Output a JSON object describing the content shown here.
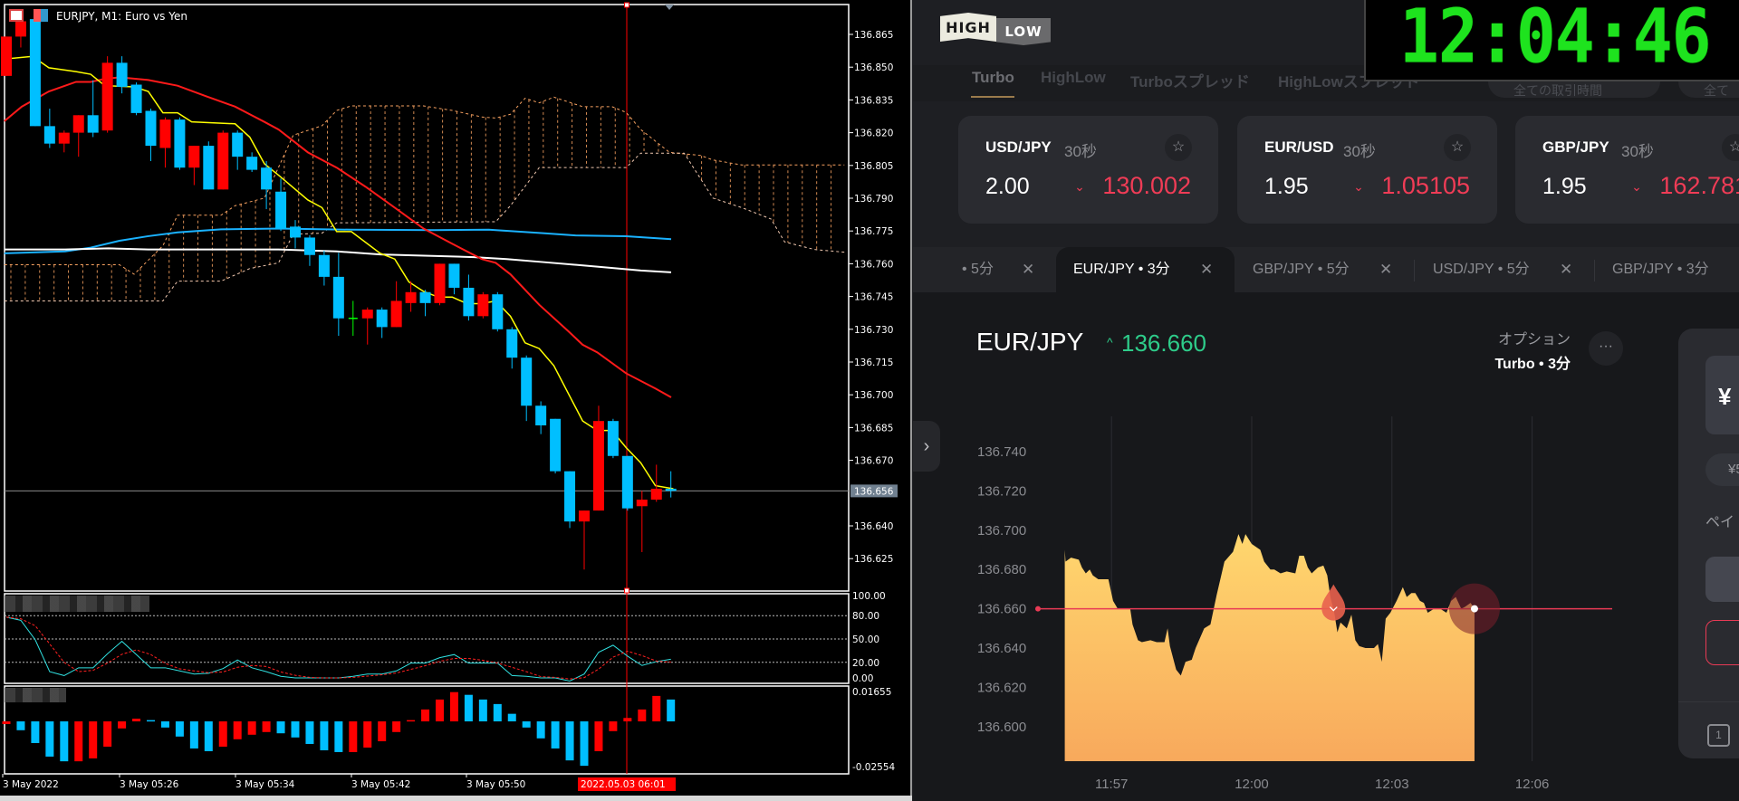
{
  "mt4": {
    "title": "EURJPY, M1:  Euro vs Yen",
    "price_axis": [
      "136.865",
      "136.850",
      "136.835",
      "136.820",
      "136.805",
      "136.790",
      "136.775",
      "136.760",
      "136.745",
      "136.730",
      "136.715",
      "136.700",
      "136.685",
      "136.670",
      "136.640",
      "136.625"
    ],
    "current_price": "136.656",
    "stoch_axis": [
      "100.00",
      "80.00",
      "50.00",
      "20.00",
      "0.00"
    ],
    "hist_axis": [
      "0.01655",
      "-0.02554"
    ],
    "time_axis": [
      "3 May 2022",
      "3 May 05:26",
      "3 May 05:34",
      "3 May 05:42",
      "3 May 05:50"
    ],
    "crosshair_time": "2022.05.03 06:01",
    "colors": {
      "bull": "#ff0000",
      "bear": "#00bfff",
      "doji": "#00ff00",
      "ma_fast": "#ffff00",
      "ma_mid": "#ff1a1a",
      "ma_slow1": "#1ab2ff",
      "ma_slow2": "#ffffff",
      "cloud": "#f5a060",
      "crosshair": "#ff0000"
    },
    "chart_data": {
      "type": "candlestick",
      "timeframe": "M1",
      "first_bar": "05:18",
      "candles_ohlc": [
        [
          136.846,
          136.864,
          136.846,
          136.864
        ],
        [
          136.864,
          136.874,
          136.859,
          136.871
        ],
        [
          136.872,
          136.874,
          136.823,
          136.823
        ],
        [
          136.823,
          136.831,
          136.813,
          136.815
        ],
        [
          136.815,
          136.821,
          136.811,
          136.82
        ],
        [
          136.82,
          136.828,
          136.809,
          136.828
        ],
        [
          136.828,
          136.844,
          136.818,
          136.82
        ],
        [
          136.821,
          136.855,
          136.82,
          136.852
        ],
        [
          136.852,
          136.855,
          136.838,
          136.841
        ],
        [
          136.842,
          136.843,
          136.828,
          136.829
        ],
        [
          136.83,
          136.831,
          136.807,
          136.814
        ],
        [
          136.813,
          136.827,
          136.804,
          136.826
        ],
        [
          136.826,
          136.827,
          136.803,
          136.804
        ],
        [
          136.804,
          136.814,
          136.796,
          136.814
        ],
        [
          136.814,
          136.816,
          136.794,
          136.794
        ],
        [
          136.794,
          136.821,
          136.794,
          136.82
        ],
        [
          136.82,
          136.821,
          136.803,
          136.809
        ],
        [
          136.809,
          136.811,
          136.802,
          136.803
        ],
        [
          136.804,
          136.807,
          136.785,
          136.794
        ],
        [
          136.793,
          136.799,
          136.775,
          136.776
        ],
        [
          136.777,
          136.78,
          136.767,
          136.772
        ],
        [
          136.772,
          136.773,
          136.759,
          136.764
        ],
        [
          136.764,
          136.766,
          136.75,
          136.754
        ],
        [
          136.754,
          136.765,
          136.727,
          136.735
        ],
        [
          136.735,
          136.743,
          136.727,
          136.735
        ],
        [
          136.735,
          136.74,
          136.723,
          136.739
        ],
        [
          136.739,
          136.74,
          136.726,
          136.731
        ],
        [
          136.731,
          136.752,
          136.731,
          136.743
        ],
        [
          136.742,
          136.752,
          136.738,
          136.747
        ],
        [
          136.747,
          136.748,
          136.736,
          136.742
        ],
        [
          136.742,
          136.76,
          136.741,
          136.76
        ],
        [
          136.76,
          136.76,
          136.746,
          136.749
        ],
        [
          136.749,
          136.755,
          136.734,
          136.736
        ],
        [
          136.736,
          136.747,
          136.735,
          136.746
        ],
        [
          136.746,
          136.747,
          136.729,
          136.73
        ],
        [
          136.73,
          136.731,
          136.712,
          136.717
        ],
        [
          136.717,
          136.718,
          136.688,
          136.695
        ],
        [
          136.695,
          136.697,
          136.682,
          136.686
        ],
        [
          136.689,
          136.689,
          136.664,
          136.665
        ],
        [
          136.665,
          136.665,
          136.639,
          136.642
        ],
        [
          136.642,
          136.647,
          136.62,
          136.647
        ],
        [
          136.647,
          136.695,
          136.647,
          136.688
        ],
        [
          136.688,
          136.689,
          136.671,
          136.672
        ],
        [
          136.672,
          136.672,
          136.647,
          136.648
        ],
        [
          136.649,
          136.656,
          136.628,
          136.652
        ],
        [
          136.652,
          136.668,
          136.651,
          136.657
        ],
        [
          136.657,
          136.665,
          136.653,
          136.656
        ]
      ],
      "stochastic_main": [
        78,
        74,
        49,
        8,
        3,
        13,
        13,
        31,
        47,
        30,
        13,
        13,
        9,
        5,
        6,
        12,
        23,
        13,
        8,
        2,
        0,
        0,
        0,
        0,
        2,
        5,
        5,
        9,
        19,
        19,
        26,
        30,
        19,
        19,
        19,
        3,
        2,
        0,
        0,
        -4,
        5,
        33,
        42,
        28,
        16,
        21,
        24
      ],
      "stochastic_levels": [
        80,
        50,
        20
      ],
      "histogram": [
        -0.0015,
        -0.0049,
        -0.012,
        -0.0195,
        -0.0221,
        -0.0221,
        -0.0205,
        -0.014,
        -0.0039,
        0.0015,
        0.0007,
        -0.0034,
        -0.0084,
        -0.015,
        -0.0165,
        -0.014,
        -0.0099,
        -0.0074,
        -0.0059,
        -0.0066,
        -0.0089,
        -0.0125,
        -0.016,
        -0.017,
        -0.017,
        -0.0145,
        -0.011,
        -0.0059,
        0.0007,
        0.0066,
        0.0121,
        0.0162,
        0.0147,
        0.0121,
        0.0096,
        0.0042,
        -0.0034,
        -0.0094,
        -0.015,
        -0.0216,
        -0.0246,
        -0.0165,
        -0.0054,
        0.0019,
        0.0066,
        0.0141,
        0.0121
      ],
      "price_range": [
        136.615,
        136.875
      ],
      "stoch_range": [
        0,
        100
      ],
      "hist_range": [
        -0.02554,
        0.01655
      ]
    }
  },
  "highlow": {
    "logo": {
      "high": "HIGH",
      "low": "LOW"
    },
    "clock": "12:04:46",
    "nav_tabs": [
      "Turbo",
      "HighLow",
      "Turboスプレッド",
      "HighLowスプレッド"
    ],
    "filters": [
      "全ての取引時間",
      "全て"
    ],
    "cards": [
      {
        "pair": "USD/JPY",
        "duration": "30秒",
        "payout": "2.00",
        "rate": "130.002"
      },
      {
        "pair": "EUR/USD",
        "duration": "30秒",
        "payout": "1.95",
        "rate": "1.05105"
      },
      {
        "pair": "GBP/JPY",
        "duration": "30秒",
        "payout": "1.95",
        "rate": "162.781"
      }
    ],
    "asset_tabs": [
      {
        "label": "• 5分",
        "active": false
      },
      {
        "label": "EUR/JPY • 3分",
        "active": true
      },
      {
        "label": "GBP/JPY • 5分",
        "active": false
      },
      {
        "label": "USD/JPY • 5分",
        "active": false
      },
      {
        "label": "GBP/JPY • 3分",
        "active": false
      }
    ],
    "pair": "EUR/JPY",
    "price": "136.660",
    "option_label": "オプション",
    "option_value": "Turbo • 3分",
    "more": "···",
    "side": {
      "amount": "¥",
      "amount_pill": "¥5",
      "payout_label": "ペイ",
      "oneclick": "1"
    },
    "colors": {
      "up": "#2ecc8a",
      "down": "#f03c56",
      "area_top": "#ffd76e",
      "area_bottom": "#f8a95c",
      "strike": "#e83a55"
    },
    "chart_data": {
      "type": "area",
      "y_ticks": [
        "136.740",
        "136.720",
        "136.700",
        "136.680",
        "136.660",
        "136.640",
        "136.620",
        "136.600"
      ],
      "x_ticks": [
        "11:57",
        "12:00",
        "12:03",
        "12:06"
      ],
      "ylim": [
        136.585,
        136.75
      ],
      "strike": 136.66,
      "entry_time": "12:01:45",
      "points": [
        [
          "11:56:00",
          136.69
        ],
        [
          "11:56:01",
          136.684
        ],
        [
          "11:56:08",
          136.686
        ],
        [
          "11:56:18",
          136.685
        ],
        [
          "11:56:22",
          136.681
        ],
        [
          "11:56:27",
          136.678
        ],
        [
          "11:56:32",
          136.68
        ],
        [
          "11:56:36",
          136.677
        ],
        [
          "11:56:43",
          136.675
        ],
        [
          "11:56:56",
          136.675
        ],
        [
          "11:57:02",
          136.664
        ],
        [
          "11:57:08",
          136.66
        ],
        [
          "11:57:18",
          136.66
        ],
        [
          "11:57:24",
          136.66
        ],
        [
          "11:57:27",
          136.652
        ],
        [
          "11:57:34",
          136.644
        ],
        [
          "11:57:39",
          136.643
        ],
        [
          "11:57:50",
          136.644
        ],
        [
          "11:57:58",
          136.643
        ],
        [
          "11:58:08",
          136.643
        ],
        [
          "11:58:12",
          136.65
        ],
        [
          "11:58:15",
          136.641
        ],
        [
          "11:58:23",
          136.629
        ],
        [
          "11:58:29",
          136.626
        ],
        [
          "11:58:35",
          136.633
        ],
        [
          "11:58:43",
          136.634
        ],
        [
          "11:58:48",
          136.64
        ],
        [
          "11:58:59",
          136.65
        ],
        [
          "11:59:07",
          136.652
        ],
        [
          "11:59:15",
          136.667
        ],
        [
          "11:59:25",
          136.684
        ],
        [
          "11:59:36",
          136.689
        ],
        [
          "11:59:43",
          136.698
        ],
        [
          "11:59:48",
          136.693
        ],
        [
          "11:59:52",
          136.698
        ],
        [
          "12:00:00",
          136.693
        ],
        [
          "12:00:11",
          136.69
        ],
        [
          "12:00:16",
          136.684
        ],
        [
          "12:00:24",
          136.68
        ],
        [
          "12:00:29",
          136.68
        ],
        [
          "12:00:37",
          136.678
        ],
        [
          "12:00:45",
          136.679
        ],
        [
          "12:00:56",
          136.678
        ],
        [
          "12:01:01",
          136.687
        ],
        [
          "12:01:07",
          136.687
        ],
        [
          "12:01:12",
          136.681
        ],
        [
          "12:01:17",
          136.678
        ],
        [
          "12:01:25",
          136.681
        ],
        [
          "12:01:32",
          136.682
        ],
        [
          "12:01:37",
          136.677
        ],
        [
          "12:01:41",
          136.666
        ],
        [
          "12:01:46",
          136.658
        ],
        [
          "12:01:50",
          136.648
        ],
        [
          "12:01:54",
          136.653
        ],
        [
          "12:02:02",
          136.65
        ],
        [
          "12:02:08",
          136.657
        ],
        [
          "12:02:13",
          136.644
        ],
        [
          "12:02:18",
          136.641
        ],
        [
          "12:02:26",
          136.64
        ],
        [
          "12:02:37",
          136.64
        ],
        [
          "12:02:42",
          136.642
        ],
        [
          "12:02:47",
          136.633
        ],
        [
          "12:02:52",
          136.655
        ],
        [
          "12:02:58",
          136.658
        ],
        [
          "12:03:06",
          136.664
        ],
        [
          "12:03:14",
          136.671
        ],
        [
          "12:03:19",
          136.666
        ],
        [
          "12:03:25",
          136.668
        ],
        [
          "12:03:30",
          136.668
        ],
        [
          "12:03:36",
          136.664
        ],
        [
          "12:03:41",
          136.663
        ],
        [
          "12:03:46",
          136.658
        ],
        [
          "12:03:54",
          136.66
        ],
        [
          "12:04:02",
          136.66
        ],
        [
          "12:04:10",
          136.658
        ],
        [
          "12:04:16",
          136.664
        ],
        [
          "12:04:22",
          136.666
        ],
        [
          "12:04:29",
          136.66
        ],
        [
          "12:04:34",
          136.661
        ],
        [
          "12:04:41",
          136.663
        ],
        [
          "12:04:46",
          136.66
        ]
      ]
    }
  }
}
